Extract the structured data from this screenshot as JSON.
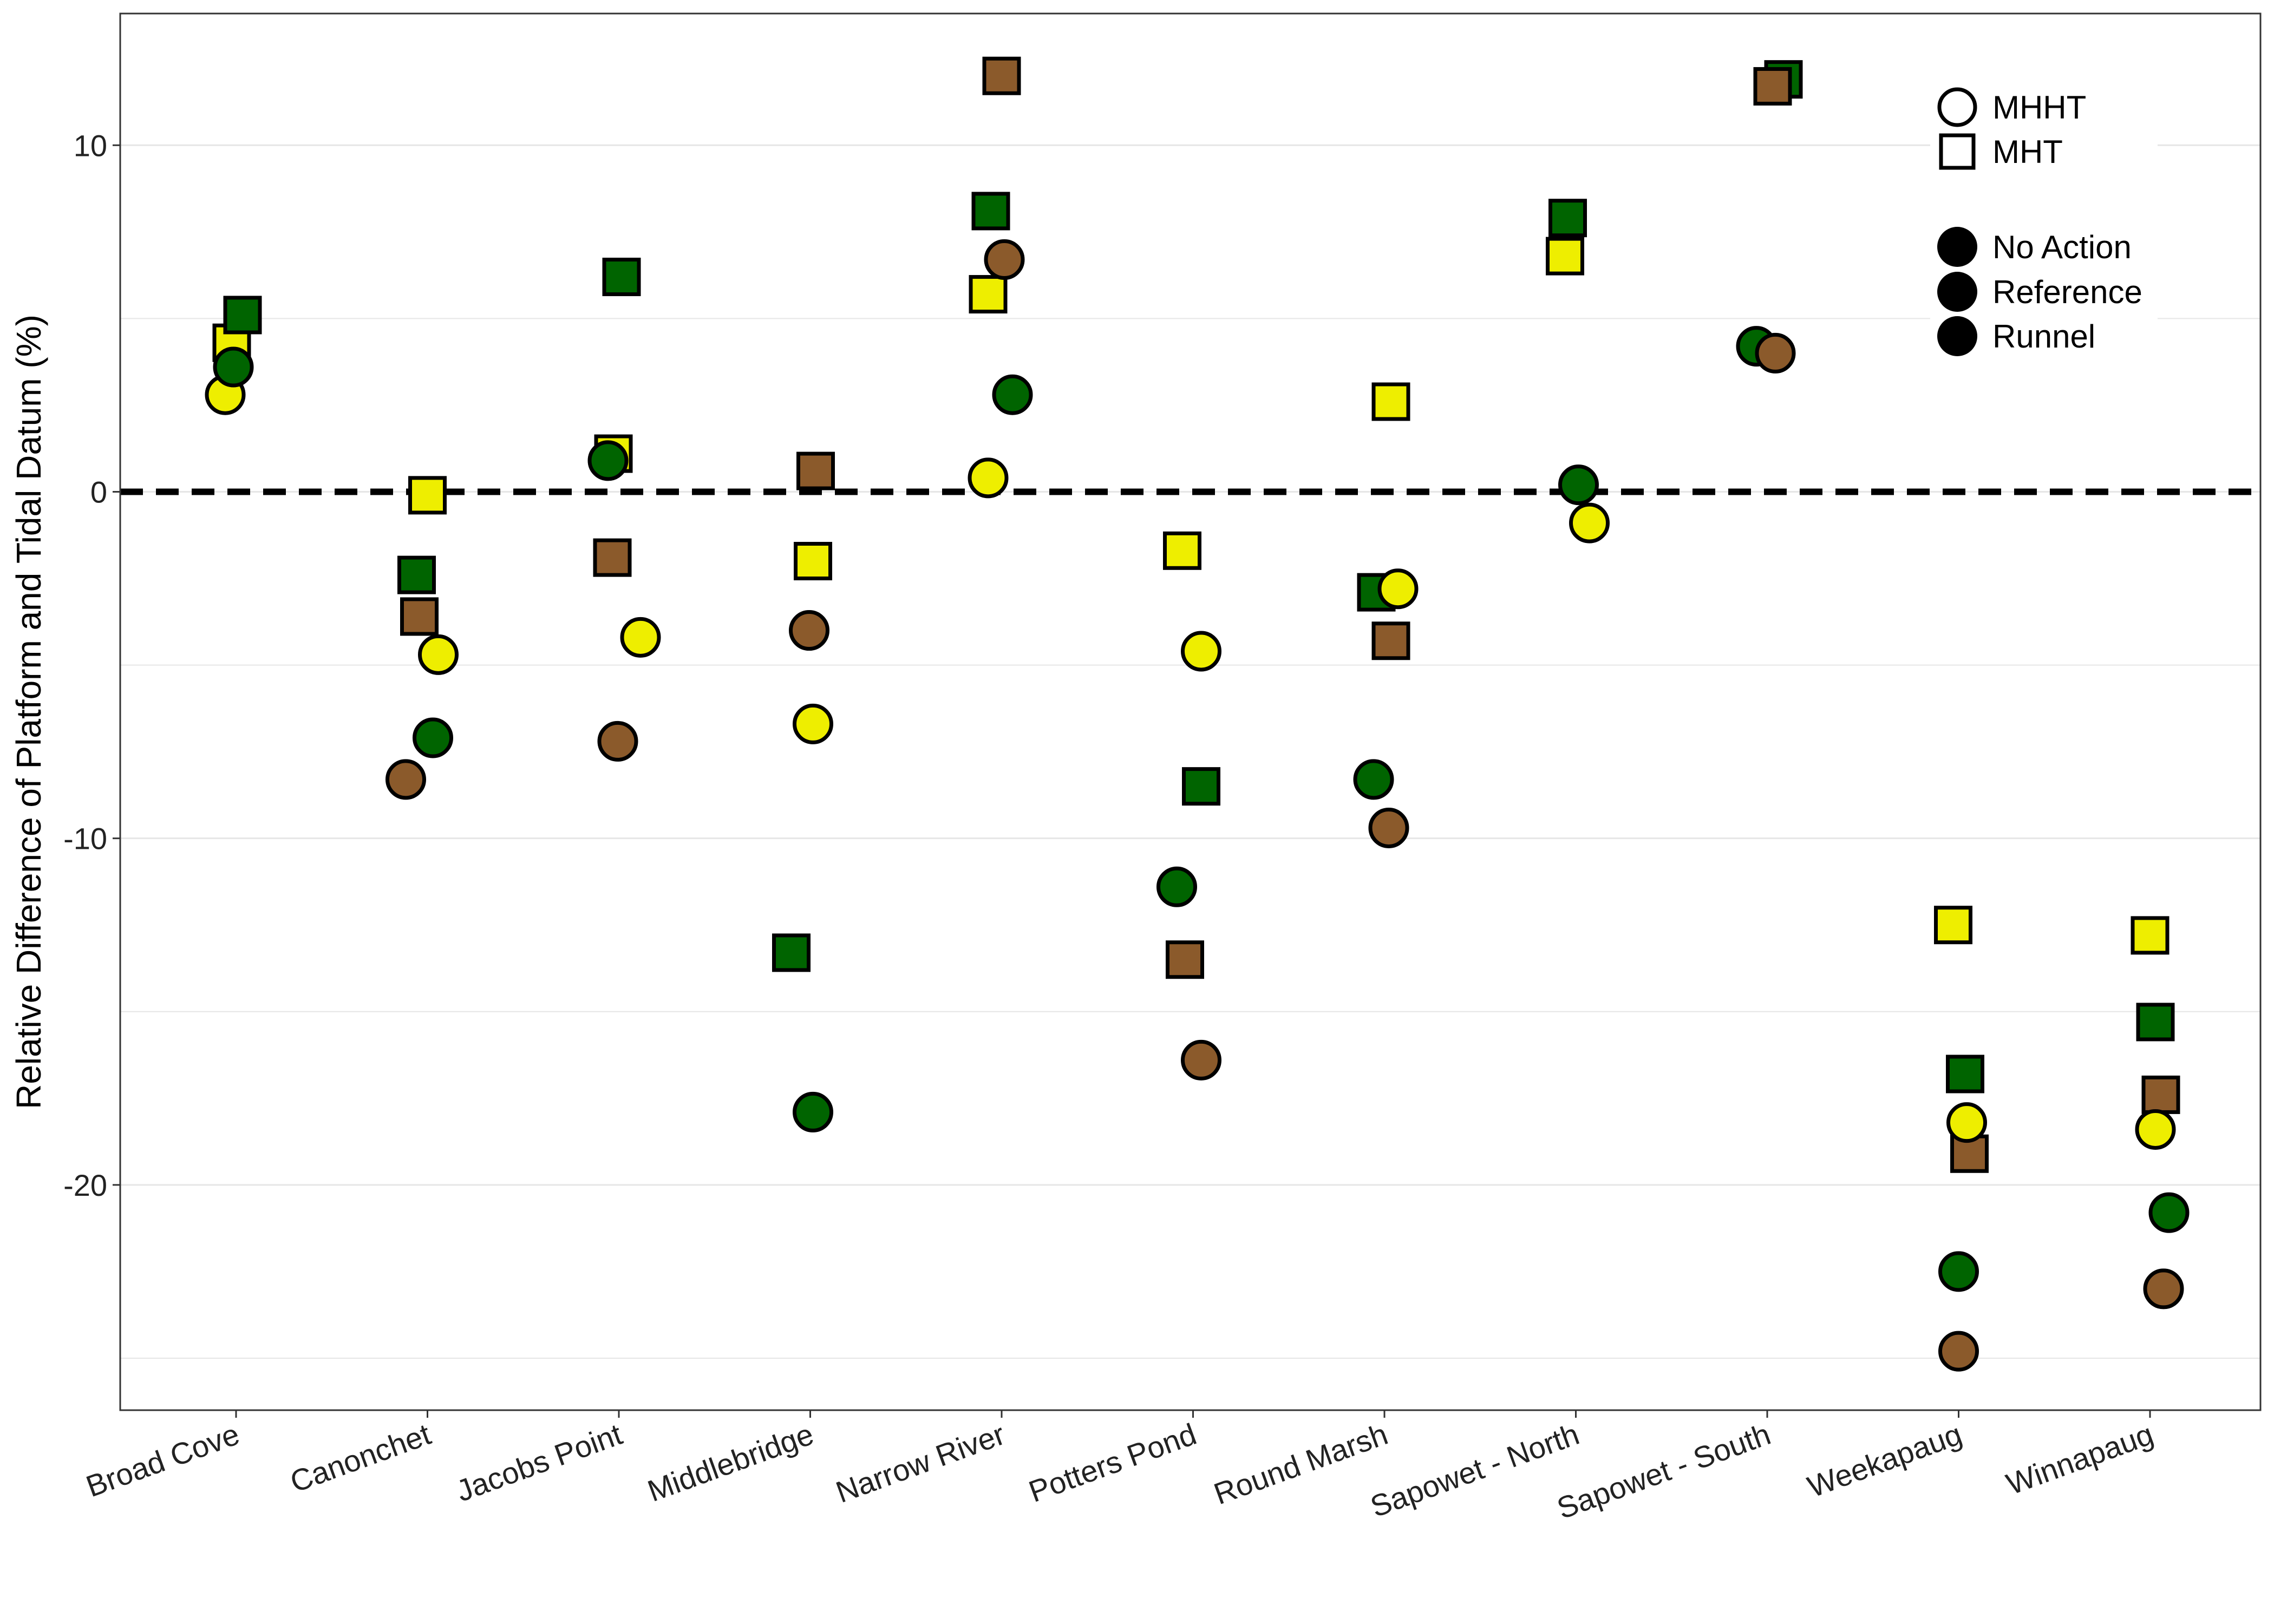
{
  "chart_data": {
    "type": "scatter",
    "title": "",
    "xlabel": "",
    "ylabel": "Relative Difference of Platform and Tidal Datum (%)",
    "categories": [
      "Broad Cove",
      "Canonchet",
      "Jacobs Point",
      "Middlebridge",
      "Narrow River",
      "Potters Pond",
      "Round Marsh",
      "Sapowet - North",
      "Sapowet - South",
      "Weekapaug",
      "Winnapaug"
    ],
    "ylim": [
      -26.5,
      13.8
    ],
    "yticks": [
      10,
      0,
      -10,
      -20
    ],
    "ytick_labels": [
      "10",
      "0",
      "-10",
      "-20"
    ],
    "reference_line": {
      "y": 0,
      "style": "dashed"
    },
    "grid": true,
    "legend_position": "top-right",
    "shape_legend": [
      {
        "label": "MHHT",
        "shape": "circle"
      },
      {
        "label": "MHT",
        "shape": "square"
      }
    ],
    "color_legend": [
      {
        "label": "No Action",
        "color": "#000000"
      },
      {
        "label": "Reference",
        "color": "#000000"
      },
      {
        "label": "Runnel",
        "color": "#000000"
      }
    ],
    "group_colors": {
      "No Action": "#8B5A2B",
      "Reference": "#EEEE00",
      "Runnel": "#006400"
    },
    "series": [
      {
        "group": "Reference",
        "datum": "MHT",
        "values": [
          4.3,
          -0.1,
          1.1,
          -2.0,
          5.7,
          -1.7,
          2.6,
          6.8,
          null,
          -12.5,
          -12.8
        ]
      },
      {
        "group": "Runnel",
        "datum": "MHT",
        "values": [
          5.1,
          -2.4,
          6.2,
          -13.3,
          8.1,
          -8.5,
          -2.9,
          7.9,
          11.9,
          -16.8,
          -15.3
        ]
      },
      {
        "group": "No Action",
        "datum": "MHT",
        "values": [
          null,
          -3.6,
          -1.9,
          0.6,
          12.0,
          -13.5,
          -4.3,
          null,
          11.7,
          -19.1,
          -17.4
        ]
      },
      {
        "group": "Reference",
        "datum": "MHHT",
        "values": [
          2.8,
          -4.7,
          -4.2,
          -6.7,
          0.4,
          -4.6,
          -2.8,
          -0.9,
          null,
          -18.2,
          -18.4
        ]
      },
      {
        "group": "Runnel",
        "datum": "MHHT",
        "values": [
          3.6,
          -7.1,
          0.9,
          -17.9,
          2.8,
          -11.4,
          -8.3,
          0.2,
          4.2,
          -22.5,
          -20.8
        ]
      },
      {
        "group": "No Action",
        "datum": "MHHT",
        "values": [
          null,
          -8.3,
          -7.2,
          -4.0,
          6.7,
          -16.4,
          -9.7,
          null,
          4.0,
          -24.8,
          -23.0
        ]
      }
    ]
  }
}
